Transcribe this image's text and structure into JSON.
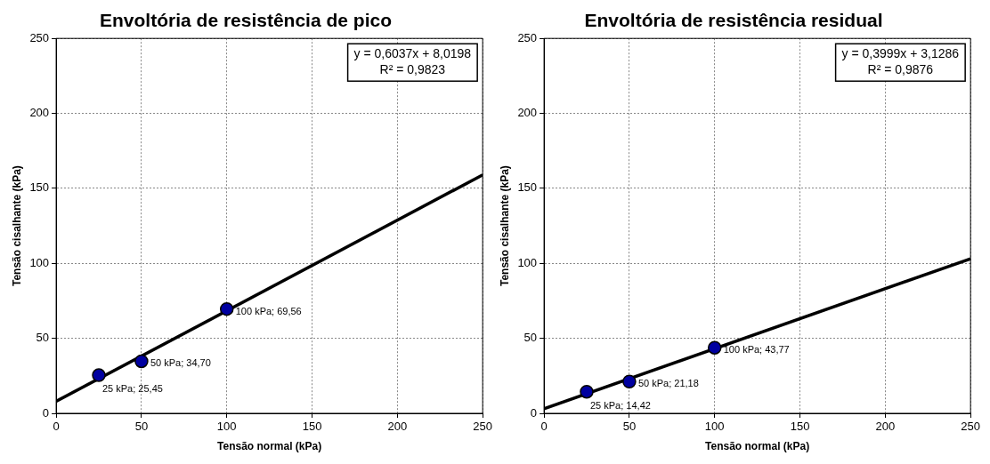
{
  "chart_data": [
    {
      "type": "scatter",
      "title": "Envoltória de resistência de pico",
      "xlabel": "Tensão normal (kPa)",
      "ylabel": "Tensão cisalhante (kPa)",
      "xlim": [
        0,
        250
      ],
      "xticks": [
        0,
        50,
        100,
        150,
        200,
        250
      ],
      "ylim": [
        0,
        250
      ],
      "yticks": [
        0,
        50,
        100,
        150,
        200,
        250
      ],
      "grid": true,
      "legend": false,
      "annotations": [
        "y = 0,6037x + 8,0198",
        "R² = 0,9823"
      ],
      "series": [
        {
          "color": "#0000a0",
          "marker": "circle",
          "x": [
            25,
            50,
            100
          ],
          "values": [
            25.45,
            34.7,
            69.56
          ],
          "value_labels": [
            "25 kPa; 25,45",
            "50 kPa; 34,70",
            "100 kPa; 69,56"
          ]
        },
        {
          "type": "line",
          "color": "#000000",
          "marker": "none",
          "x": [
            0,
            250
          ],
          "values": [
            8,
            159
          ]
        }
      ]
    },
    {
      "type": "scatter",
      "title": "Envoltória de resistência residual",
      "xlabel": "Tensão normal (kPa)",
      "ylabel": "Tensão cisalhante (kPa)",
      "xlim": [
        0,
        250
      ],
      "xticks": [
        0,
        50,
        100,
        150,
        200,
        250
      ],
      "ylim": [
        0,
        250
      ],
      "yticks": [
        0,
        50,
        100,
        150,
        200,
        250
      ],
      "grid": true,
      "legend": false,
      "annotations": [
        "y = 0,3999x + 3,1286",
        "R² = 0,9876"
      ],
      "series": [
        {
          "color": "#0000a0",
          "marker": "circle",
          "x": [
            25,
            50,
            100
          ],
          "values": [
            14.42,
            21.18,
            43.77
          ],
          "value_labels": [
            "25 kPa; 14,42",
            "50 kPa; 21,18",
            "100 kPa; 43,77"
          ]
        },
        {
          "type": "line",
          "color": "#000000",
          "marker": "none",
          "x": [
            0,
            250
          ],
          "values": [
            3.1,
            103.1
          ]
        }
      ]
    }
  ]
}
